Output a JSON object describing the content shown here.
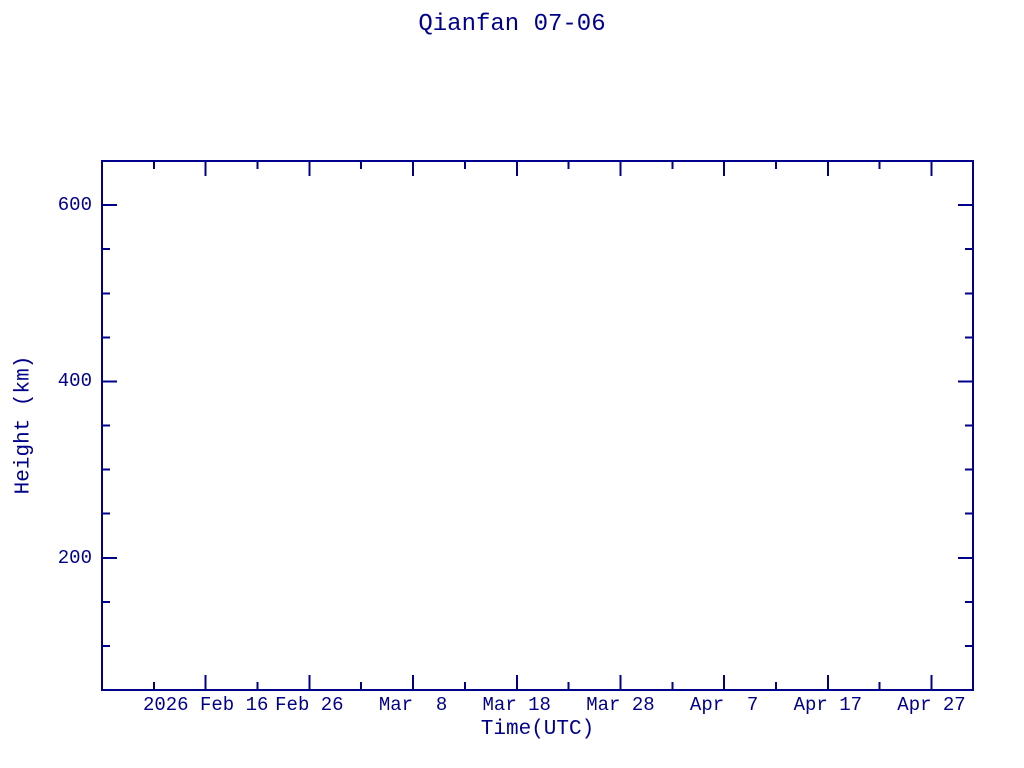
{
  "colors": {
    "accent": "#00008b",
    "background": "#ffffff"
  },
  "chart_data": {
    "type": "line",
    "title": "Qianfan 07-06",
    "xlabel": "Time(UTC)",
    "ylabel": "Height (km)",
    "grid": false,
    "legend": "none",
    "x_axis": {
      "kind": "time",
      "start": "2026 Feb 6",
      "end": "2026 May 1",
      "span_days": 84,
      "major_ticks": [
        {
          "day": 10,
          "label": "2026 Feb 16"
        },
        {
          "day": 20,
          "label": "Feb 26"
        },
        {
          "day": 30,
          "label": "Mar  8"
        },
        {
          "day": 40,
          "label": "Mar 18"
        },
        {
          "day": 50,
          "label": "Mar 28"
        },
        {
          "day": 60,
          "label": "Apr  7"
        },
        {
          "day": 70,
          "label": "Apr 17"
        },
        {
          "day": 80,
          "label": "Apr 27"
        }
      ],
      "minor_tick_days": [
        5,
        15,
        25,
        35,
        45,
        55,
        65,
        75
      ]
    },
    "y_axis": {
      "lim": [
        50,
        650
      ],
      "major_ticks": [
        {
          "value": 200,
          "label": "200"
        },
        {
          "value": 400,
          "label": "400"
        },
        {
          "value": 600,
          "label": "600"
        }
      ],
      "minor_tick_values": [
        100,
        150,
        250,
        300,
        350,
        450,
        500,
        550
      ]
    },
    "series": []
  }
}
